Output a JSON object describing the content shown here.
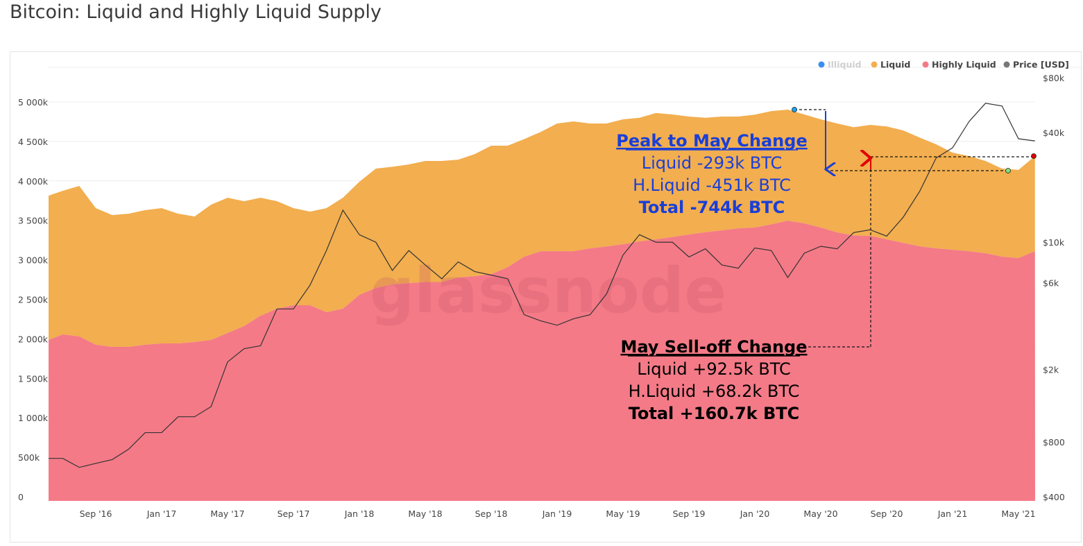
{
  "title": "Bitcoin: Liquid and Highly Liquid Supply",
  "watermark": "glassnode",
  "colors": {
    "illiquid": "#3b8ef0",
    "liquid": "#f2ae4f",
    "highly_liquid": "#f47a87",
    "price": "#333333",
    "legend_price": "#777777",
    "annotation_blue": "#1a3fd8",
    "annotation_red": "#e00000"
  },
  "chart_data": {
    "type": "area",
    "title": "Bitcoin: Liquid and Highly Liquid Supply",
    "x": [
      "2016-06",
      "2016-07",
      "2016-08",
      "2016-09",
      "2016-10",
      "2016-11",
      "2016-12",
      "2017-01",
      "2017-02",
      "2017-03",
      "2017-04",
      "2017-05",
      "2017-06",
      "2017-07",
      "2017-08",
      "2017-09",
      "2017-10",
      "2017-11",
      "2017-12",
      "2018-01",
      "2018-02",
      "2018-03",
      "2018-04",
      "2018-05",
      "2018-06",
      "2018-07",
      "2018-08",
      "2018-09",
      "2018-10",
      "2018-11",
      "2018-12",
      "2019-01",
      "2019-02",
      "2019-03",
      "2019-04",
      "2019-05",
      "2019-06",
      "2019-07",
      "2019-08",
      "2019-09",
      "2019-10",
      "2019-11",
      "2019-12",
      "2020-01",
      "2020-02",
      "2020-03",
      "2020-04",
      "2020-05",
      "2020-06",
      "2020-07",
      "2020-08",
      "2020-09",
      "2020-10",
      "2020-11",
      "2020-12",
      "2021-01",
      "2021-02",
      "2021-03",
      "2021-04",
      "2021-05",
      "2021-06"
    ],
    "x_ticks": [
      "Sep '16",
      "Jan '17",
      "May '17",
      "Sep '17",
      "Jan '18",
      "May '18",
      "Sep '18",
      "Jan '19",
      "May '19",
      "Sep '19",
      "Jan '20",
      "May '20",
      "Sep '20",
      "Jan '21",
      "May '21"
    ],
    "y_ticks_left": [
      "0",
      "500k",
      "1 000k",
      "1 500k",
      "2 000k",
      "2 500k",
      "3 000k",
      "3 500k",
      "4 000k",
      "4 500k",
      "5 000k"
    ],
    "ylim_left": [
      0,
      5000000
    ],
    "y_ticks_right": [
      "$400",
      "$800",
      "$2k",
      "$6k",
      "$10k",
      "$40k",
      "$80k"
    ],
    "y_right_scale": "log",
    "ylim_right": [
      400,
      80000
    ],
    "grid": true,
    "legend_placement": "top-right",
    "legend": [
      "Illiquid",
      "Liquid",
      "Highly Liquid",
      "Price [USD]"
    ],
    "series": [
      {
        "name": "Highly Liquid",
        "stack": "bottom",
        "values": [
          1986000,
          2056000,
          2030000,
          1925000,
          1898000,
          1898000,
          1925000,
          1942000,
          1942000,
          1960000,
          1986000,
          2074000,
          2162000,
          2293000,
          2381000,
          2425000,
          2425000,
          2337000,
          2381000,
          2557000,
          2645000,
          2689000,
          2706000,
          2720000,
          2720000,
          2777000,
          2794000,
          2820000,
          2908000,
          3040000,
          3110000,
          3110000,
          3110000,
          3146000,
          3170000,
          3198000,
          3234000,
          3260000,
          3290000,
          3322000,
          3350000,
          3374000,
          3400000,
          3409000,
          3450000,
          3497000,
          3462000,
          3409000,
          3348000,
          3310000,
          3304000,
          3260000,
          3215000,
          3172000,
          3146000,
          3128000,
          3110000,
          3084000,
          3040000,
          3023000,
          3110000
        ]
      },
      {
        "name": "Liquid",
        "stack": "top",
        "total_values": [
          3814000,
          3875000,
          3937000,
          3655000,
          3568000,
          3585000,
          3630000,
          3655000,
          3585000,
          3550000,
          3700000,
          3787000,
          3743000,
          3787000,
          3743000,
          3655000,
          3612000,
          3655000,
          3787000,
          3990000,
          4156000,
          4180000,
          4209000,
          4253000,
          4253000,
          4270000,
          4340000,
          4446000,
          4446000,
          4530000,
          4620000,
          4728000,
          4754000,
          4728000,
          4728000,
          4780000,
          4800000,
          4860000,
          4842000,
          4815000,
          4800000,
          4815000,
          4815000,
          4840000,
          4885000,
          4903000,
          4842000,
          4780000,
          4728000,
          4680000,
          4710000,
          4690000,
          4640000,
          4550000,
          4464000,
          4358000,
          4315000,
          4253000,
          4156000,
          4140000,
          4315000
        ]
      },
      {
        "name": "Price [USD]",
        "axis": "right",
        "values": [
          650,
          650,
          580,
          610,
          640,
          730,
          900,
          900,
          1100,
          1100,
          1250,
          2200,
          2600,
          2700,
          4300,
          4300,
          5800,
          9000,
          15000,
          11000,
          10000,
          7000,
          9000,
          7500,
          6300,
          7800,
          6900,
          6600,
          6300,
          4000,
          3700,
          3500,
          3800,
          4000,
          5200,
          8500,
          11000,
          10000,
          10000,
          8300,
          9200,
          7500,
          7200,
          9300,
          9000,
          6400,
          8700,
          9500,
          9200,
          11300,
          11700,
          10800,
          13700,
          19000,
          29000,
          33000,
          46000,
          58000,
          56000,
          37000,
          36000
        ]
      }
    ],
    "annotations": {
      "peak": {
        "heading": "Peak to May Change",
        "lines": [
          "Liquid -293k BTC",
          "H.Liquid -451k BTC"
        ],
        "total": "Total -744k BTC"
      },
      "selloff": {
        "heading": "May Sell-off Change",
        "lines": [
          "Liquid +92.5k BTC",
          "H.Liquid +68.2k BTC"
        ],
        "total": "Total +160.7k BTC"
      }
    }
  }
}
